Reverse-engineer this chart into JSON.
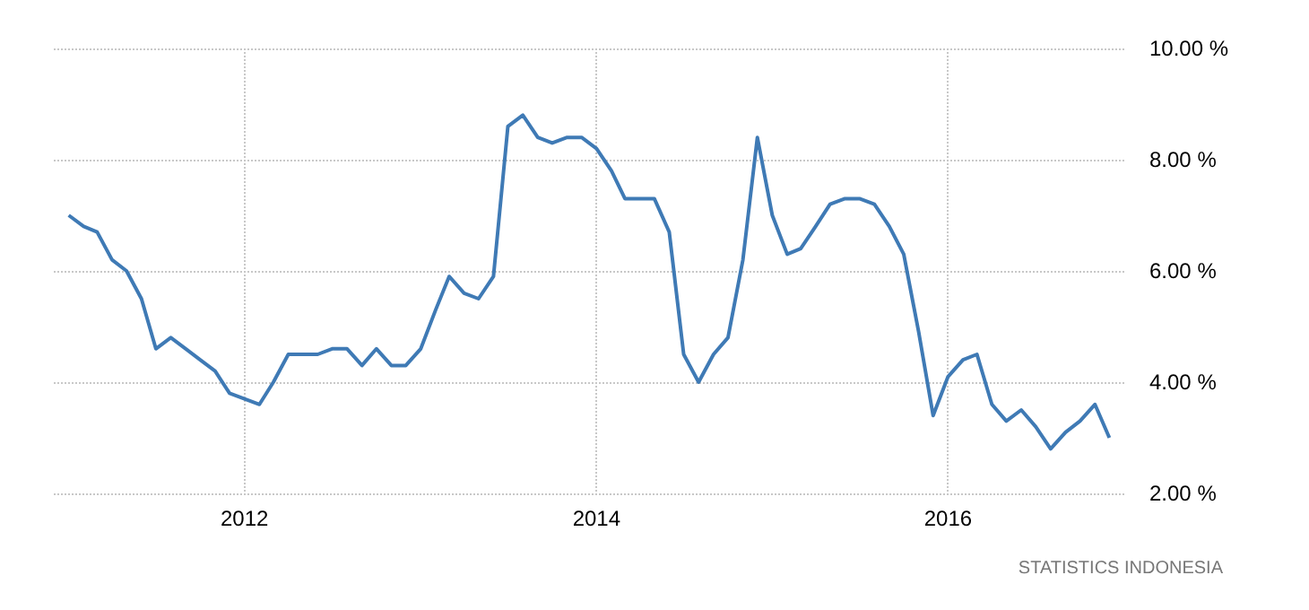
{
  "chart_data": {
    "type": "line",
    "x": [
      "2011-01",
      "2011-02",
      "2011-03",
      "2011-04",
      "2011-05",
      "2011-06",
      "2011-07",
      "2011-08",
      "2011-09",
      "2011-10",
      "2011-11",
      "2011-12",
      "2012-01",
      "2012-02",
      "2012-03",
      "2012-04",
      "2012-05",
      "2012-06",
      "2012-07",
      "2012-08",
      "2012-09",
      "2012-10",
      "2012-11",
      "2012-12",
      "2013-01",
      "2013-02",
      "2013-03",
      "2013-04",
      "2013-05",
      "2013-06",
      "2013-07",
      "2013-08",
      "2013-09",
      "2013-10",
      "2013-11",
      "2013-12",
      "2014-01",
      "2014-02",
      "2014-03",
      "2014-04",
      "2014-05",
      "2014-06",
      "2014-07",
      "2014-08",
      "2014-09",
      "2014-10",
      "2014-11",
      "2014-12",
      "2015-01",
      "2015-02",
      "2015-03",
      "2015-04",
      "2015-05",
      "2015-06",
      "2015-07",
      "2015-08",
      "2015-09",
      "2015-10",
      "2015-11",
      "2015-12",
      "2016-01",
      "2016-02",
      "2016-03",
      "2016-04",
      "2016-05",
      "2016-06",
      "2016-07",
      "2016-08",
      "2016-09",
      "2016-10",
      "2016-11",
      "2016-12"
    ],
    "series": [
      {
        "color": "#3f7ab5",
        "values": [
          7.0,
          6.8,
          6.7,
          6.2,
          6.0,
          5.5,
          4.6,
          4.8,
          4.6,
          4.4,
          4.2,
          3.8,
          3.7,
          3.6,
          4.0,
          4.5,
          4.5,
          4.5,
          4.6,
          4.6,
          4.3,
          4.6,
          4.3,
          4.3,
          4.6,
          5.3,
          5.9,
          5.6,
          5.5,
          5.9,
          8.6,
          8.8,
          8.4,
          8.3,
          8.4,
          8.4,
          8.2,
          7.8,
          7.3,
          7.3,
          7.3,
          6.7,
          4.5,
          4.0,
          4.5,
          4.8,
          6.2,
          8.4,
          7.0,
          6.3,
          6.4,
          6.8,
          7.2,
          7.3,
          7.3,
          7.2,
          6.8,
          6.3,
          4.9,
          3.4,
          4.1,
          4.4,
          4.5,
          3.6,
          3.3,
          3.5,
          3.2,
          2.8,
          3.1,
          3.3,
          3.6,
          3.0
        ]
      }
    ],
    "xlim": [
      "2010-12-01",
      "2017-01-01"
    ],
    "xticks": [
      "2012",
      "2014",
      "2016"
    ],
    "ylim": [
      2,
      10
    ],
    "yticks": [
      {
        "value": 2,
        "label": "2.00 %"
      },
      {
        "value": 4,
        "label": "4.00 %"
      },
      {
        "value": 6,
        "label": "6.00 %"
      },
      {
        "value": 8,
        "label": "8.00 %"
      },
      {
        "value": 10,
        "label": "10.00 %"
      }
    ],
    "grid": true,
    "marker": "none",
    "line_style": "solid",
    "annotations": [
      "STATISTICS INDONESIA"
    ]
  }
}
